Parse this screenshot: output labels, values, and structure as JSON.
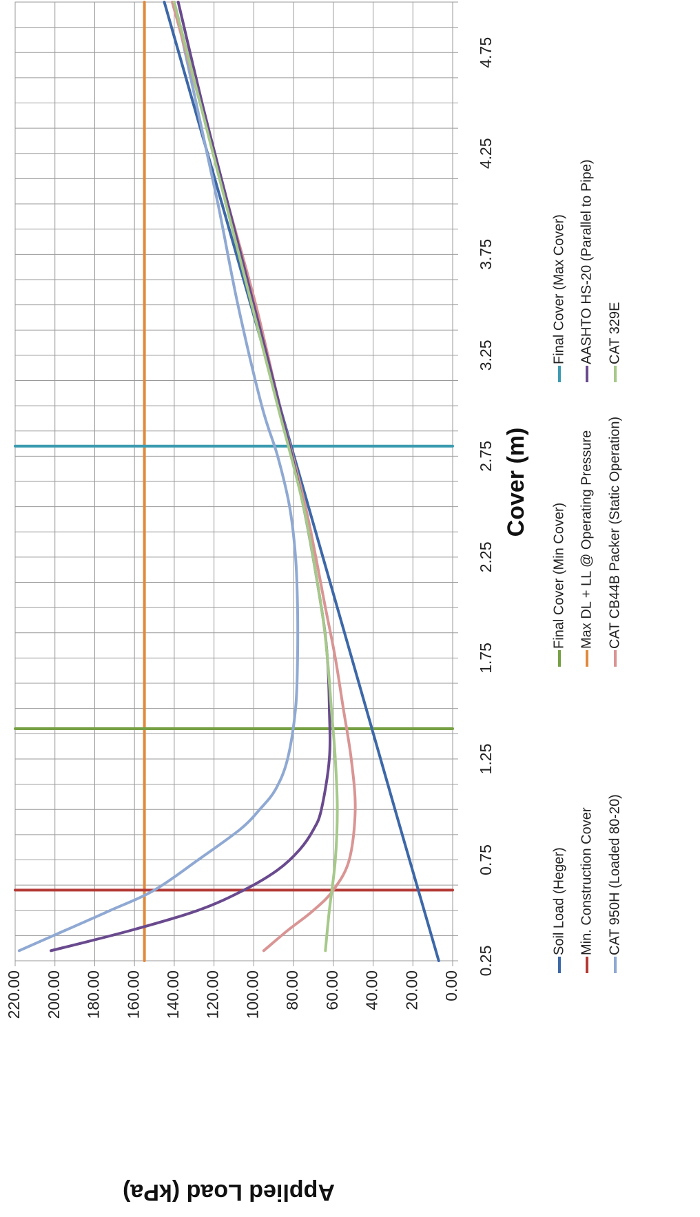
{
  "chart_data": {
    "type": "line",
    "orientation": "rotated-90-ccw",
    "xlabel": "Cover (m)",
    "ylabel": "Applied Load (kPa)",
    "xlim": [
      0.25,
      5.0
    ],
    "ylim": [
      0,
      220
    ],
    "x_ticks": [
      0.25,
      0.75,
      1.25,
      1.75,
      2.25,
      2.75,
      3.25,
      3.75,
      4.25,
      4.75
    ],
    "x_tick_labels": [
      "0.25",
      "0.75",
      "1.25",
      "1.75",
      "2.25",
      "2.75",
      "3.25",
      "3.75",
      "4.25",
      "4.75"
    ],
    "y_ticks": [
      0,
      20,
      40,
      60,
      80,
      100,
      120,
      140,
      160,
      180,
      200,
      220
    ],
    "y_tick_labels": [
      "0.00",
      "20.00",
      "40.00",
      "60.00",
      "80.00",
      "100.00",
      "120.00",
      "140.00",
      "160.00",
      "180.00",
      "200.00",
      "220.00"
    ],
    "grid": true,
    "legend_position": "bottom",
    "series": [
      {
        "name": "Soil Load (Heger)",
        "color": "#3d68a8",
        "kind": "curve",
        "points": [
          [
            0.25,
            7
          ],
          [
            1.0,
            29
          ],
          [
            2.0,
            58
          ],
          [
            3.0,
            87
          ],
          [
            4.0,
            116
          ],
          [
            5.0,
            145
          ]
        ]
      },
      {
        "name": "Min. Construction Cover",
        "color": "#b33a36",
        "kind": "vertical",
        "x": 0.6
      },
      {
        "name": "CAT 950H (Loaded 80-20)",
        "color": "#8fa9d3",
        "kind": "curve",
        "points": [
          [
            0.3,
            218
          ],
          [
            0.4,
            195
          ],
          [
            0.5,
            172
          ],
          [
            0.6,
            150
          ],
          [
            0.75,
            128
          ],
          [
            0.9,
            107
          ],
          [
            1.0,
            97
          ],
          [
            1.1,
            89
          ],
          [
            1.25,
            83
          ],
          [
            1.5,
            79
          ],
          [
            1.75,
            78
          ],
          [
            2.0,
            78
          ],
          [
            2.25,
            79
          ],
          [
            2.5,
            82
          ],
          [
            2.75,
            88
          ],
          [
            3.0,
            96
          ],
          [
            3.5,
            108
          ],
          [
            4.0,
            118
          ],
          [
            4.5,
            129
          ],
          [
            5.0,
            140
          ]
        ]
      },
      {
        "name": "Final Cover (Min Cover)",
        "color": "#76a044",
        "kind": "vertical",
        "x": 1.4
      },
      {
        "name": "Max DL + LL @ Operating Pressure",
        "color": "#e08a3c",
        "kind": "horizontal",
        "y": 155
      },
      {
        "name": "CAT CB44B Packer (Static Operation)",
        "color": "#d99594",
        "kind": "curve",
        "points": [
          [
            0.3,
            95
          ],
          [
            0.4,
            83
          ],
          [
            0.5,
            70
          ],
          [
            0.6,
            60
          ],
          [
            0.75,
            52
          ],
          [
            1.0,
            49
          ],
          [
            1.25,
            51
          ],
          [
            1.5,
            55
          ],
          [
            1.75,
            59
          ],
          [
            2.0,
            64
          ],
          [
            2.5,
            74
          ],
          [
            3.0,
            87
          ],
          [
            3.5,
            99
          ],
          [
            4.0,
            113
          ],
          [
            4.5,
            127
          ],
          [
            5.0,
            141
          ]
        ]
      },
      {
        "name": "Final Cover (Max Cover)",
        "color": "#3c9bb0",
        "kind": "vertical",
        "x": 2.8
      },
      {
        "name": "AASHTO HS-20 (Parallel to Pipe)",
        "color": "#6a4a8e",
        "kind": "curve",
        "points": [
          [
            0.3,
            202
          ],
          [
            0.4,
            162
          ],
          [
            0.5,
            128
          ],
          [
            0.6,
            105
          ],
          [
            0.7,
            88
          ],
          [
            0.8,
            77
          ],
          [
            0.9,
            70
          ],
          [
            1.0,
            66
          ],
          [
            1.25,
            62
          ],
          [
            1.5,
            62
          ],
          [
            1.75,
            63
          ],
          [
            2.0,
            66
          ],
          [
            2.5,
            75
          ],
          [
            3.0,
            87
          ],
          [
            3.5,
            100
          ],
          [
            4.0,
            113
          ],
          [
            4.5,
            126
          ],
          [
            5.0,
            138
          ]
        ]
      },
      {
        "name": "CAT 329E",
        "color": "#a6c98a",
        "kind": "curve",
        "points": [
          [
            0.3,
            64
          ],
          [
            0.5,
            62
          ],
          [
            0.75,
            59
          ],
          [
            1.0,
            58
          ],
          [
            1.25,
            59
          ],
          [
            1.5,
            61
          ],
          [
            1.75,
            63
          ],
          [
            2.0,
            66
          ],
          [
            2.5,
            75
          ],
          [
            3.0,
            88
          ],
          [
            3.5,
            101
          ],
          [
            4.0,
            114
          ],
          [
            4.5,
            127
          ],
          [
            5.0,
            140
          ]
        ]
      }
    ]
  }
}
